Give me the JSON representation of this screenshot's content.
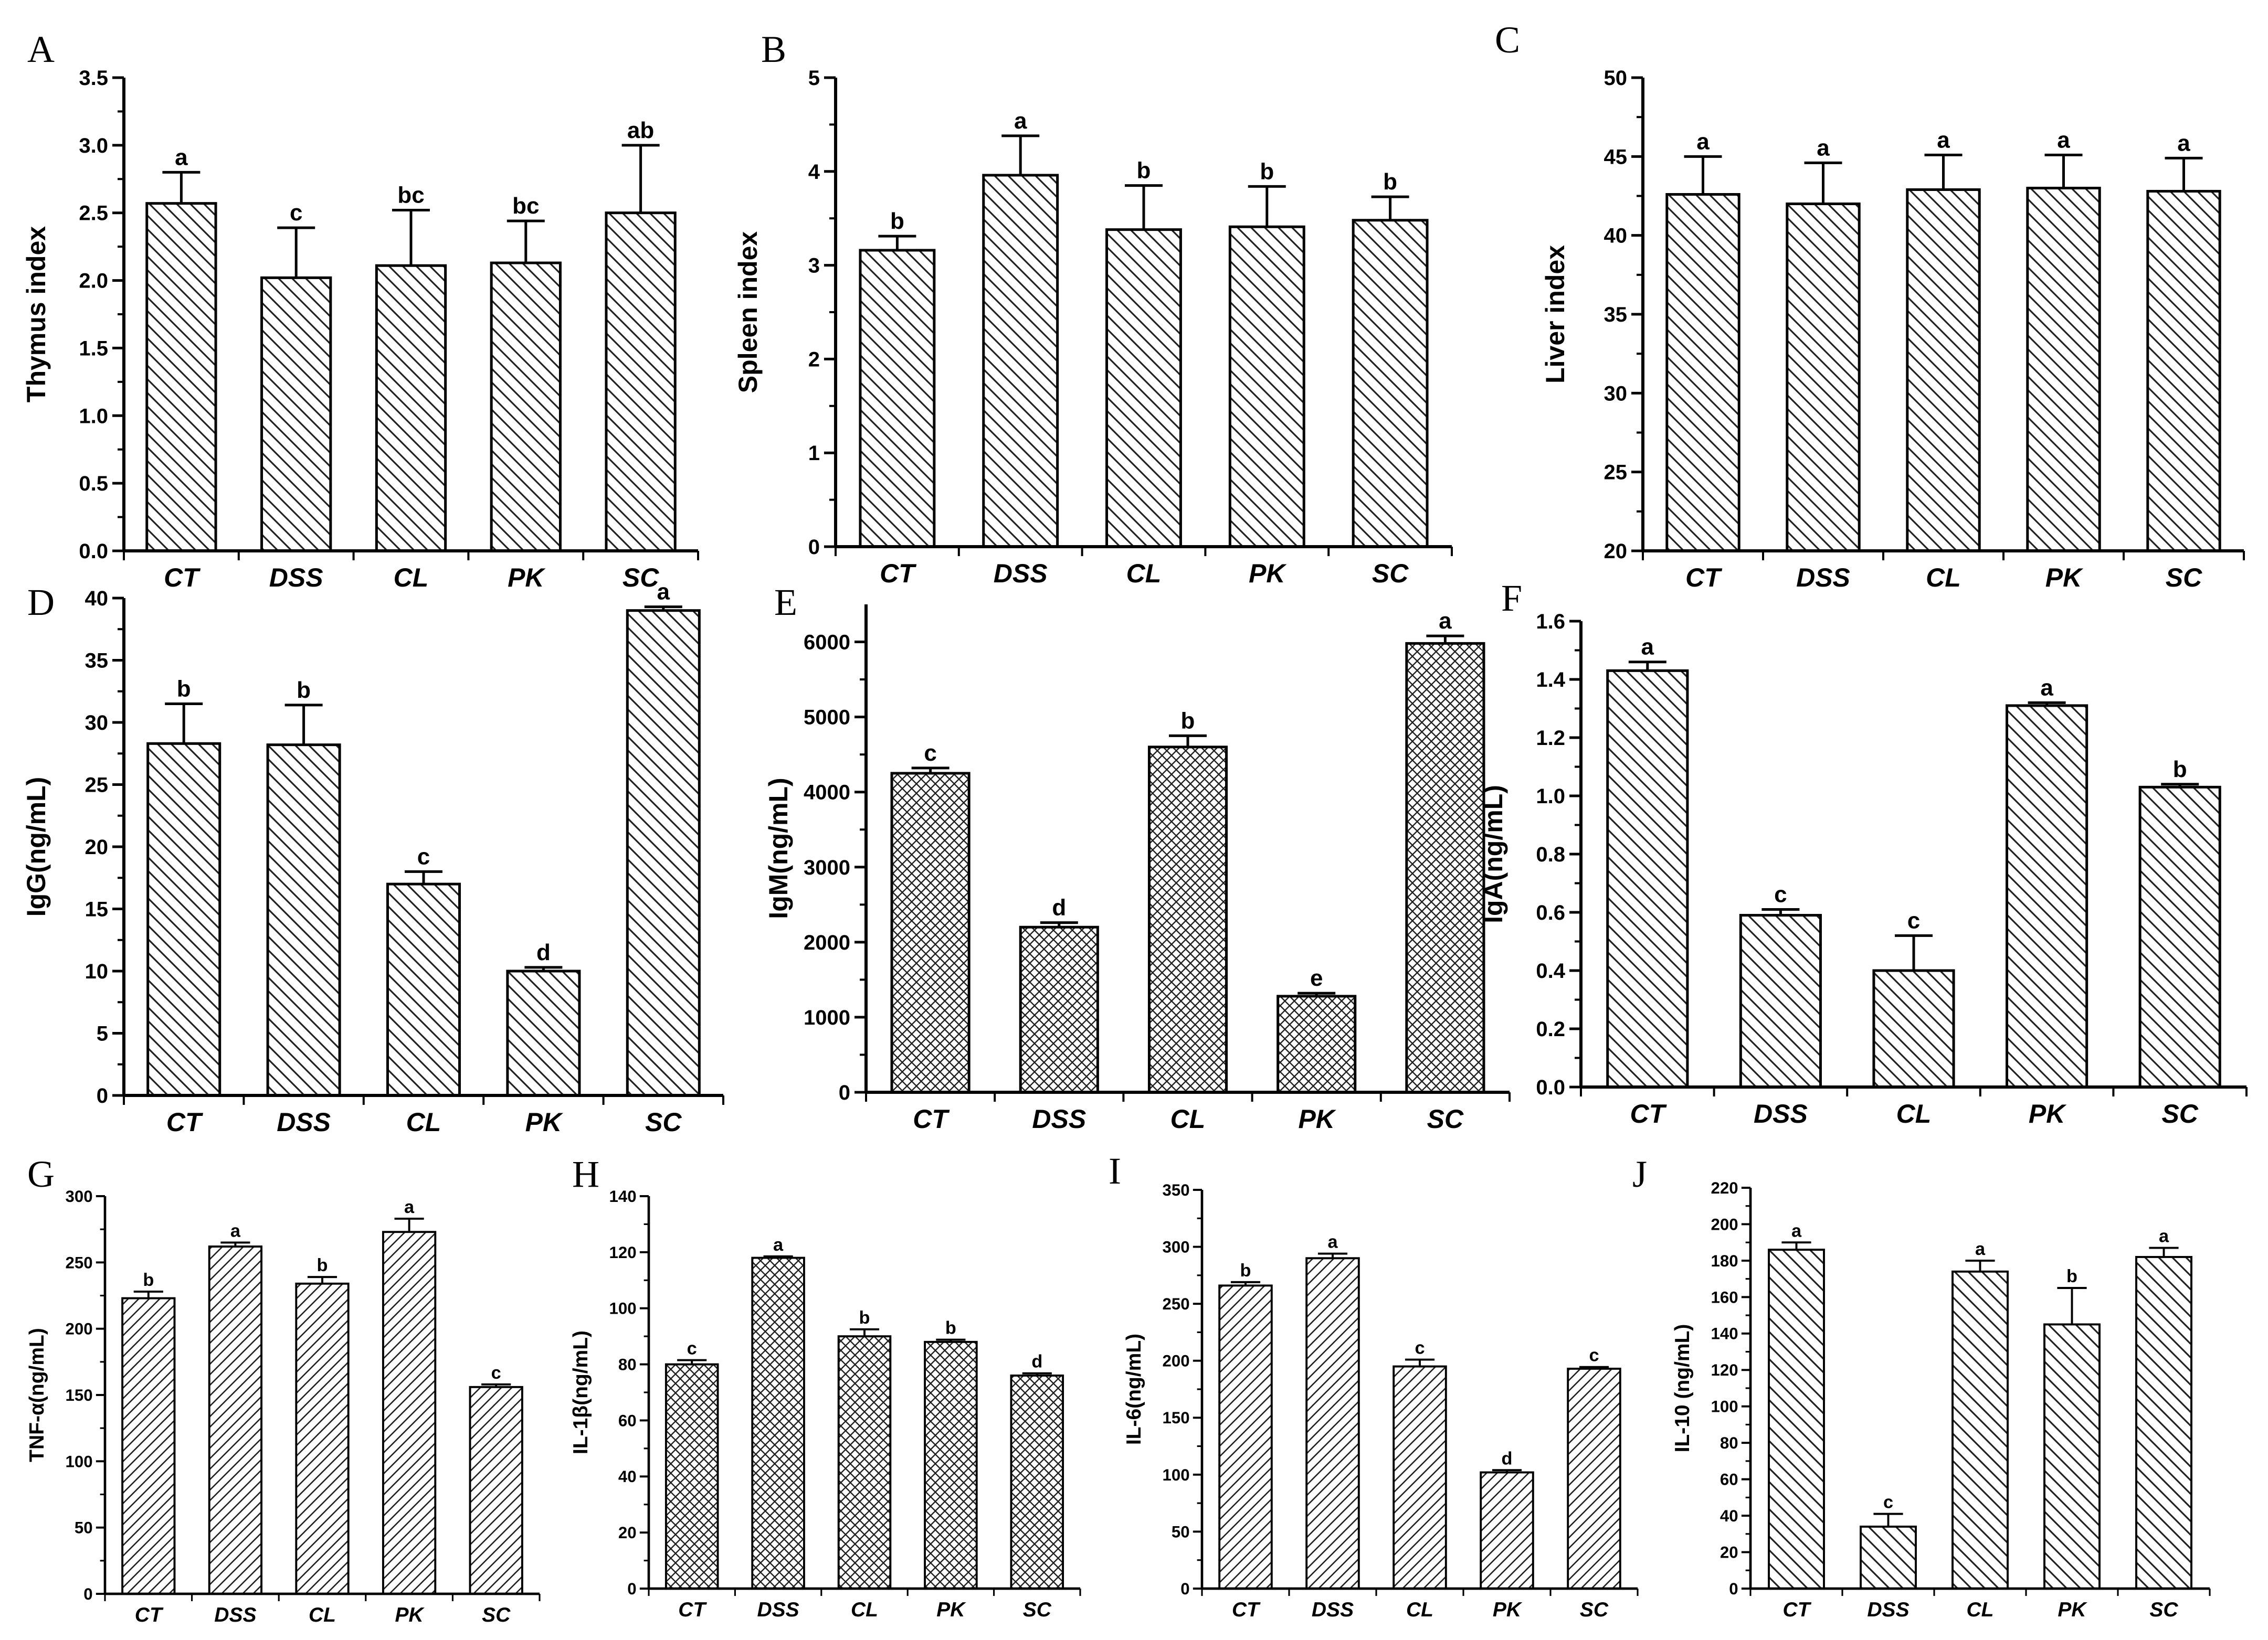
{
  "chart_data": [
    {
      "panel_label": "A",
      "type": "bar",
      "categories": [
        "CT",
        "DSS",
        "CL",
        "PK",
        "SC"
      ],
      "values": [
        2.57,
        2.02,
        2.11,
        2.13,
        2.5
      ],
      "errors": [
        0.23,
        0.37,
        0.41,
        0.31,
        0.5
      ],
      "letters": [
        "a",
        "c",
        "bc",
        "bc",
        "ab"
      ],
      "ylabel": "Thymus index",
      "ylim": [
        0,
        3.5
      ],
      "ticks": [
        "0.0",
        "0.5",
        "1.0",
        "1.5",
        "2.0",
        "2.5",
        "3.0",
        "3.5"
      ],
      "pattern": "hatch-back"
    },
    {
      "panel_label": "B",
      "type": "bar",
      "categories": [
        "CT",
        "DSS",
        "CL",
        "PK",
        "SC"
      ],
      "values": [
        3.16,
        3.96,
        3.38,
        3.41,
        3.48
      ],
      "errors": [
        0.15,
        0.42,
        0.47,
        0.43,
        0.25
      ],
      "letters": [
        "b",
        "a",
        "b",
        "b",
        "b"
      ],
      "ylabel": "Spleen index",
      "ylim": [
        0,
        5
      ],
      "ticks": [
        "0",
        "1",
        "2",
        "3",
        "4",
        "5"
      ],
      "pattern": "hatch-back"
    },
    {
      "panel_label": "C",
      "type": "bar",
      "categories": [
        "CT",
        "DSS",
        "CL",
        "PK",
        "SC"
      ],
      "values": [
        42.6,
        42.0,
        42.9,
        43.0,
        42.8
      ],
      "errors": [
        2.4,
        2.6,
        2.2,
        2.1,
        2.1
      ],
      "letters": [
        "a",
        "a",
        "a",
        "a",
        "a"
      ],
      "ylabel": "Liver index",
      "ylim": [
        20,
        50
      ],
      "ticks": [
        "20",
        "25",
        "30",
        "35",
        "40",
        "45",
        "50"
      ],
      "pattern": "hatch-back"
    },
    {
      "panel_label": "D",
      "type": "bar",
      "categories": [
        "CT",
        "DSS",
        "CL",
        "PK",
        "SC"
      ],
      "values": [
        28.3,
        28.2,
        17.0,
        10.0,
        39.0
      ],
      "errors": [
        3.2,
        3.2,
        1.0,
        0.3,
        0.3
      ],
      "letters": [
        "b",
        "b",
        "c",
        "d",
        "a"
      ],
      "ylabel": "IgG(ng/mL)",
      "ylim": [
        0,
        40
      ],
      "ticks": [
        "0",
        "5",
        "10",
        "15",
        "20",
        "25",
        "30",
        "35",
        "40"
      ],
      "pattern": "hatch-back"
    },
    {
      "panel_label": "E",
      "type": "bar",
      "categories": [
        "CT",
        "DSS",
        "CL",
        "PK",
        "SC"
      ],
      "values": [
        4250,
        2200,
        4600,
        1280,
        5980
      ],
      "errors": [
        70,
        60,
        150,
        40,
        100
      ],
      "letters": [
        "c",
        "d",
        "b",
        "e",
        "a"
      ],
      "ylabel": "IgM(ng/mL)",
      "ylim": [
        0,
        6500
      ],
      "ticks": [
        "0",
        "1000",
        "2000",
        "3000",
        "4000",
        "5000",
        "6000"
      ],
      "pattern": "crosshatch"
    },
    {
      "panel_label": "F",
      "type": "bar",
      "categories": [
        "CT",
        "DSS",
        "CL",
        "PK",
        "SC"
      ],
      "values": [
        1.43,
        0.59,
        0.4,
        1.31,
        1.03
      ],
      "errors": [
        0.03,
        0.02,
        0.12,
        0.01,
        0.01
      ],
      "letters": [
        "a",
        "c",
        "c",
        "a",
        "b"
      ],
      "ylabel": "IgA(ng/mL)",
      "ylim": [
        0,
        1.6
      ],
      "ticks": [
        "0.0",
        "0.2",
        "0.4",
        "0.6",
        "0.8",
        "1.0",
        "1.2",
        "1.4",
        "1.6"
      ],
      "pattern": "hatch-back"
    },
    {
      "panel_label": "G",
      "type": "bar",
      "categories": [
        "CT",
        "DSS",
        "CL",
        "PK",
        "SC"
      ],
      "values": [
        223,
        262,
        234,
        273,
        156
      ],
      "errors": [
        5,
        3,
        5,
        10,
        2
      ],
      "letters": [
        "b",
        "a",
        "b",
        "a",
        "c"
      ],
      "ylabel": "TNF-α(ng/mL)",
      "ylim": [
        0,
        300
      ],
      "ticks": [
        "0",
        "50",
        "100",
        "150",
        "200",
        "250",
        "300"
      ],
      "pattern": "hatch-fwd"
    },
    {
      "panel_label": "H",
      "type": "bar",
      "categories": [
        "CT",
        "DSS",
        "CL",
        "PK",
        "SC"
      ],
      "values": [
        80,
        118,
        90,
        88,
        76
      ],
      "errors": [
        1.5,
        0.5,
        2.5,
        0.8,
        0.8
      ],
      "letters": [
        "c",
        "a",
        "b",
        "b",
        "d"
      ],
      "ylabel": "IL-1β(ng/mL)",
      "ylim": [
        0,
        140
      ],
      "ticks": [
        "0",
        "20",
        "40",
        "60",
        "80",
        "100",
        "120",
        "140"
      ],
      "pattern": "crosshatch"
    },
    {
      "panel_label": "I",
      "type": "bar",
      "categories": [
        "CT",
        "DSS",
        "CL",
        "PK",
        "SC"
      ],
      "values": [
        266,
        290,
        195,
        102,
        193
      ],
      "errors": [
        3,
        4,
        6,
        2,
        1.5
      ],
      "letters": [
        "b",
        "a",
        "c",
        "d",
        "c"
      ],
      "ylabel": "IL-6(ng/mL)",
      "ylim": [
        0,
        350
      ],
      "ticks": [
        "0",
        "50",
        "100",
        "150",
        "200",
        "250",
        "300",
        "350"
      ],
      "pattern": "hatch-fwd"
    },
    {
      "panel_label": "J",
      "type": "bar",
      "categories": [
        "CT",
        "DSS",
        "CL",
        "PK",
        "SC"
      ],
      "values": [
        186,
        34,
        174,
        145,
        182
      ],
      "errors": [
        4,
        7,
        6,
        20,
        5
      ],
      "letters": [
        "a",
        "c",
        "a",
        "b",
        "a"
      ],
      "ylabel": "IL-10 (ng/mL)",
      "ylim": [
        0,
        220
      ],
      "ticks": [
        "0",
        "20",
        "40",
        "60",
        "80",
        "100",
        "120",
        "140",
        "160",
        "180",
        "200",
        "220"
      ],
      "pattern": "hatch-back"
    }
  ]
}
